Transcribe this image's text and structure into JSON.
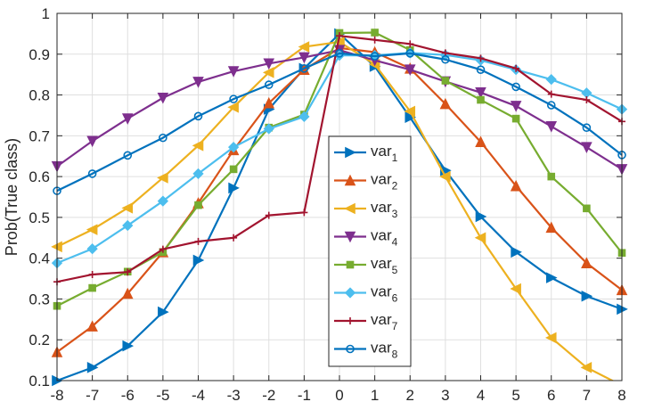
{
  "chart_data": {
    "type": "line",
    "title": "",
    "xlabel": "",
    "ylabel": "Prob(True class)",
    "xlim": [
      -8,
      8
    ],
    "ylim": [
      0.1,
      1
    ],
    "xticks": [
      "-8",
      "-7",
      "-6",
      "-5",
      "-4",
      "-3",
      "-2",
      "-1",
      "0",
      "1",
      "2",
      "3",
      "4",
      "5",
      "6",
      "7",
      "8"
    ],
    "yticks": [
      "0.1",
      "0.2",
      "0.3",
      "0.4",
      "0.5",
      "0.6",
      "0.7",
      "0.8",
      "0.9",
      "1"
    ],
    "grid": true,
    "legend_position": "center",
    "x": [
      -8,
      -7,
      -6,
      -5,
      -4,
      -3,
      -2,
      -1,
      0,
      1,
      2,
      3,
      4,
      5,
      6,
      7,
      8
    ],
    "series": [
      {
        "name": "var",
        "sub": "1",
        "color": "#0072BD",
        "marker": "triangle-right",
        "values": [
          0.1,
          0.132,
          0.185,
          0.268,
          0.395,
          0.572,
          0.765,
          0.865,
          0.95,
          0.87,
          0.745,
          0.615,
          0.502,
          0.415,
          0.352,
          0.307,
          0.275
        ]
      },
      {
        "name": "var",
        "sub": "2",
        "color": "#D95319",
        "marker": "triangle-up",
        "values": [
          0.17,
          0.233,
          0.313,
          0.415,
          0.535,
          0.665,
          0.78,
          0.862,
          0.915,
          0.905,
          0.865,
          0.778,
          0.685,
          0.577,
          0.475,
          0.388,
          0.322
        ]
      },
      {
        "name": "var",
        "sub": "3",
        "color": "#EDB120",
        "marker": "triangle-left",
        "values": [
          0.428,
          0.47,
          0.523,
          0.597,
          0.676,
          0.77,
          0.855,
          0.918,
          0.93,
          0.875,
          0.76,
          0.6,
          0.45,
          0.325,
          0.205,
          0.132,
          0.088
        ]
      },
      {
        "name": "var",
        "sub": "4",
        "color": "#7E2F8E",
        "marker": "triangle-down",
        "values": [
          0.625,
          0.687,
          0.742,
          0.793,
          0.832,
          0.858,
          0.877,
          0.892,
          0.91,
          0.885,
          0.862,
          0.833,
          0.806,
          0.773,
          0.723,
          0.672,
          0.618
        ]
      },
      {
        "name": "var",
        "sub": "5",
        "color": "#77AC30",
        "marker": "square",
        "values": [
          0.283,
          0.327,
          0.367,
          0.415,
          0.53,
          0.618,
          0.72,
          0.752,
          0.952,
          0.953,
          0.91,
          0.835,
          0.788,
          0.742,
          0.6,
          0.522,
          0.413
        ]
      },
      {
        "name": "var",
        "sub": "6",
        "color": "#4DBEEE",
        "marker": "diamond",
        "values": [
          0.388,
          0.423,
          0.48,
          0.54,
          0.607,
          0.672,
          0.717,
          0.747,
          0.897,
          0.897,
          0.903,
          0.898,
          0.885,
          0.862,
          0.838,
          0.805,
          0.765
        ]
      },
      {
        "name": "var",
        "sub": "7",
        "color": "#A2142F",
        "marker": "plus",
        "values": [
          0.342,
          0.36,
          0.366,
          0.422,
          0.441,
          0.45,
          0.505,
          0.512,
          0.945,
          0.935,
          0.925,
          0.903,
          0.89,
          0.865,
          0.802,
          0.788,
          0.735
        ]
      },
      {
        "name": "var",
        "sub": "8",
        "color": "#0072BD",
        "marker": "circle",
        "values": [
          0.565,
          0.607,
          0.652,
          0.695,
          0.748,
          0.79,
          0.825,
          0.865,
          0.902,
          0.895,
          0.902,
          0.887,
          0.862,
          0.82,
          0.775,
          0.72,
          0.653
        ]
      }
    ]
  }
}
